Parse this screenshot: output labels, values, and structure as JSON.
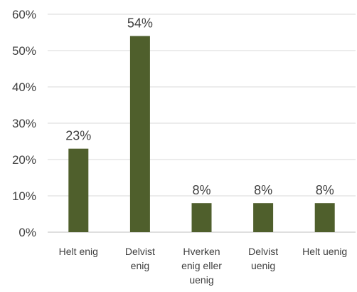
{
  "chart_data": {
    "type": "bar",
    "categories": [
      [
        "Helt enig"
      ],
      [
        "Delvist",
        "enig"
      ],
      [
        "Hverken",
        "enig eller",
        "uenig"
      ],
      [
        "Delvist",
        "uenig"
      ],
      [
        "Helt uenig"
      ]
    ],
    "values": [
      23,
      54,
      8,
      8,
      8
    ],
    "data_labels": [
      "23%",
      "54%",
      "8%",
      "8%",
      "8%"
    ],
    "y_ticks": [
      "0%",
      "10%",
      "20%",
      "30%",
      "40%",
      "50%",
      "60%"
    ],
    "ylim": [
      0,
      60
    ],
    "grid": true,
    "colors": {
      "bar": "#4f5f2c",
      "grid": "#d9d9d9",
      "axis": "#bfbfbf",
      "text": "#404040"
    }
  }
}
